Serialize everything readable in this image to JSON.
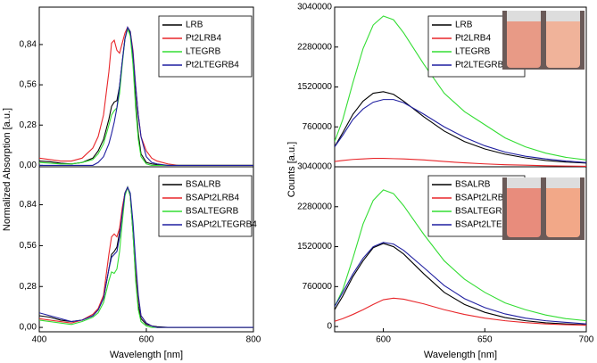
{
  "chart_data": [
    {
      "type": "line",
      "ylabel": "Normalized Absorption [a.u.]",
      "xlim": [
        400,
        800
      ],
      "ylim": [
        -0.01,
        1.1
      ],
      "yticks": [
        {
          "value": 0,
          "label": "0,00"
        },
        {
          "value": 0.28,
          "label": "0,28"
        },
        {
          "value": 0.56,
          "label": "0,56"
        },
        {
          "value": 0.84,
          "label": "0,84"
        }
      ],
      "legend": "upper right",
      "x": [
        400,
        420,
        440,
        460,
        480,
        500,
        510,
        520,
        530,
        535,
        540,
        545,
        550,
        555,
        560,
        565,
        570,
        575,
        580,
        585,
        590,
        600,
        610,
        620,
        640,
        660,
        700,
        750,
        800
      ],
      "series": [
        {
          "name": "LRB",
          "color": "#000000",
          "values": [
            0.03,
            0.025,
            0.015,
            0.01,
            0.02,
            0.05,
            0.1,
            0.18,
            0.32,
            0.41,
            0.44,
            0.45,
            0.55,
            0.72,
            0.88,
            0.95,
            0.92,
            0.75,
            0.45,
            0.22,
            0.08,
            0.02,
            0.01,
            0.005,
            0,
            0,
            0,
            0,
            0
          ]
        },
        {
          "name": "Pt2LRB4",
          "color": "#e8262a",
          "values": [
            0.05,
            0.04,
            0.03,
            0.03,
            0.05,
            0.12,
            0.2,
            0.35,
            0.65,
            0.85,
            0.87,
            0.8,
            0.78,
            0.85,
            0.92,
            0.96,
            0.93,
            0.8,
            0.55,
            0.35,
            0.2,
            0.1,
            0.05,
            0.03,
            0.01,
            0,
            0,
            0,
            0
          ]
        },
        {
          "name": "LTEGRB",
          "color": "#33dd33",
          "values": [
            0.02,
            0.015,
            0.01,
            0.01,
            0.02,
            0.04,
            0.08,
            0.15,
            0.28,
            0.35,
            0.38,
            0.4,
            0.5,
            0.7,
            0.88,
            0.95,
            0.9,
            0.7,
            0.4,
            0.18,
            0.06,
            0.01,
            0,
            0,
            0,
            0,
            0,
            0,
            0
          ]
        },
        {
          "name": "Pt2LTEGRB4",
          "color": "#1f1fa0",
          "values": [
            0,
            0,
            0,
            0,
            0,
            0,
            0.02,
            0.06,
            0.15,
            0.22,
            0.3,
            0.4,
            0.55,
            0.72,
            0.88,
            0.96,
            0.93,
            0.78,
            0.55,
            0.35,
            0.2,
            0.06,
            0.02,
            0.01,
            0,
            0,
            0,
            0,
            0
          ]
        }
      ]
    },
    {
      "type": "line",
      "xlabel": "Wavelength [nm]",
      "xlim": [
        400,
        800
      ],
      "xticks": [
        400,
        600,
        800
      ],
      "ylim": [
        -0.03,
        1.1
      ],
      "yticks": [
        {
          "value": 0,
          "label": "0,00"
        },
        {
          "value": 0.28,
          "label": "0,28"
        },
        {
          "value": 0.56,
          "label": "0,56"
        },
        {
          "value": 0.84,
          "label": "0,84"
        }
      ],
      "legend": "upper right",
      "x": [
        400,
        420,
        440,
        460,
        480,
        500,
        510,
        520,
        530,
        535,
        540,
        545,
        550,
        555,
        560,
        565,
        570,
        575,
        580,
        585,
        590,
        600,
        610,
        620,
        640,
        660,
        700,
        750,
        800
      ],
      "series": [
        {
          "name": "BSALRB",
          "color": "#000000",
          "values": [
            0.08,
            0.07,
            0.05,
            0.04,
            0.05,
            0.08,
            0.12,
            0.2,
            0.4,
            0.5,
            0.52,
            0.55,
            0.65,
            0.8,
            0.92,
            0.96,
            0.9,
            0.65,
            0.35,
            0.15,
            0.06,
            0.02,
            0.01,
            0.005,
            0,
            0,
            0,
            0,
            0
          ]
        },
        {
          "name": "BSAPt2LRB4",
          "color": "#e8262a",
          "values": [
            0.06,
            0.05,
            0.04,
            0.03,
            0.05,
            0.09,
            0.13,
            0.22,
            0.5,
            0.62,
            0.64,
            0.62,
            0.68,
            0.82,
            0.92,
            0.96,
            0.9,
            0.7,
            0.42,
            0.2,
            0.08,
            0.03,
            0.01,
            0,
            0,
            0,
            0,
            0,
            0
          ]
        },
        {
          "name": "BSALTEGRB",
          "color": "#33dd33",
          "values": [
            0.05,
            0.04,
            0.03,
            0.02,
            0.04,
            0.07,
            0.1,
            0.17,
            0.32,
            0.38,
            0.37,
            0.4,
            0.52,
            0.72,
            0.9,
            0.96,
            0.9,
            0.65,
            0.32,
            0.12,
            0.04,
            0.01,
            0,
            0,
            0,
            0,
            0,
            0,
            0
          ]
        },
        {
          "name": "BSAPt2LTEGRB4",
          "color": "#1f1fa0",
          "values": [
            0.1,
            0.08,
            0.06,
            0.04,
            0.05,
            0.08,
            0.12,
            0.2,
            0.4,
            0.48,
            0.5,
            0.52,
            0.62,
            0.78,
            0.92,
            0.96,
            0.92,
            0.72,
            0.45,
            0.22,
            0.08,
            0.03,
            0.01,
            0,
            0,
            0,
            0,
            0,
            0
          ]
        }
      ]
    },
    {
      "type": "line",
      "ylabel": "Counts [a.u.]",
      "xlim": [
        576,
        700
      ],
      "ylim": [
        0,
        3040000
      ],
      "yticks": [
        760000,
        1520000,
        2280000,
        3040000
      ],
      "legend": "upper right",
      "x": [
        576,
        580,
        585,
        590,
        595,
        600,
        605,
        610,
        620,
        630,
        640,
        650,
        660,
        670,
        680,
        690,
        700
      ],
      "series": [
        {
          "name": "LRB",
          "color": "#000000",
          "values": [
            380000,
            650000,
            1000000,
            1250000,
            1400000,
            1430000,
            1380000,
            1250000,
            950000,
            680000,
            480000,
            340000,
            240000,
            170000,
            120000,
            90000,
            70000
          ]
        },
        {
          "name": "Pt2LRB4",
          "color": "#e8262a",
          "values": [
            100000,
            120000,
            140000,
            150000,
            160000,
            160000,
            155000,
            150000,
            130000,
            100000,
            75000,
            55000,
            40000,
            30000,
            20000,
            15000,
            10000
          ]
        },
        {
          "name": "LTEGRB",
          "color": "#33dd33",
          "values": [
            480000,
            900000,
            1600000,
            2250000,
            2700000,
            2870000,
            2800000,
            2550000,
            1950000,
            1400000,
            1050000,
            800000,
            550000,
            380000,
            260000,
            180000,
            130000
          ]
        },
        {
          "name": "Pt2LTEGRB4",
          "color": "#1f1fa0",
          "values": [
            380000,
            600000,
            900000,
            1100000,
            1230000,
            1280000,
            1280000,
            1220000,
            1000000,
            760000,
            560000,
            400000,
            280000,
            200000,
            150000,
            110000,
            80000
          ]
        }
      ]
    },
    {
      "type": "line",
      "xlabel": "Wavelength [nm]",
      "xlim": [
        576,
        700
      ],
      "xticks": [
        600,
        650,
        700
      ],
      "ylim": [
        -100000,
        3040000
      ],
      "yticks": [
        0,
        760000,
        1520000,
        2280000,
        3040000
      ],
      "legend": "upper right",
      "x": [
        576,
        580,
        585,
        590,
        595,
        600,
        605,
        610,
        620,
        630,
        640,
        650,
        660,
        670,
        680,
        690,
        700
      ],
      "series": [
        {
          "name": "BSALRB",
          "color": "#000000",
          "values": [
            320000,
            580000,
            950000,
            1250000,
            1500000,
            1580000,
            1520000,
            1380000,
            1000000,
            650000,
            420000,
            270000,
            170000,
            110000,
            70000,
            50000,
            30000
          ]
        },
        {
          "name": "BSAPt2LRB4",
          "color": "#e8262a",
          "values": [
            100000,
            150000,
            230000,
            320000,
            420000,
            510000,
            540000,
            520000,
            430000,
            320000,
            230000,
            160000,
            110000,
            75000,
            50000,
            35000,
            25000
          ]
        },
        {
          "name": "BSALTEGRB",
          "color": "#33dd33",
          "values": [
            380000,
            700000,
            1300000,
            1950000,
            2400000,
            2600000,
            2530000,
            2300000,
            1750000,
            1250000,
            900000,
            650000,
            450000,
            320000,
            220000,
            150000,
            110000
          ]
        },
        {
          "name": "BSAPt2LTEGRB4",
          "color": "#1f1fa0",
          "values": [
            380000,
            650000,
            1000000,
            1300000,
            1520000,
            1600000,
            1570000,
            1450000,
            1120000,
            780000,
            530000,
            360000,
            240000,
            160000,
            110000,
            80000,
            50000
          ]
        }
      ]
    }
  ]
}
